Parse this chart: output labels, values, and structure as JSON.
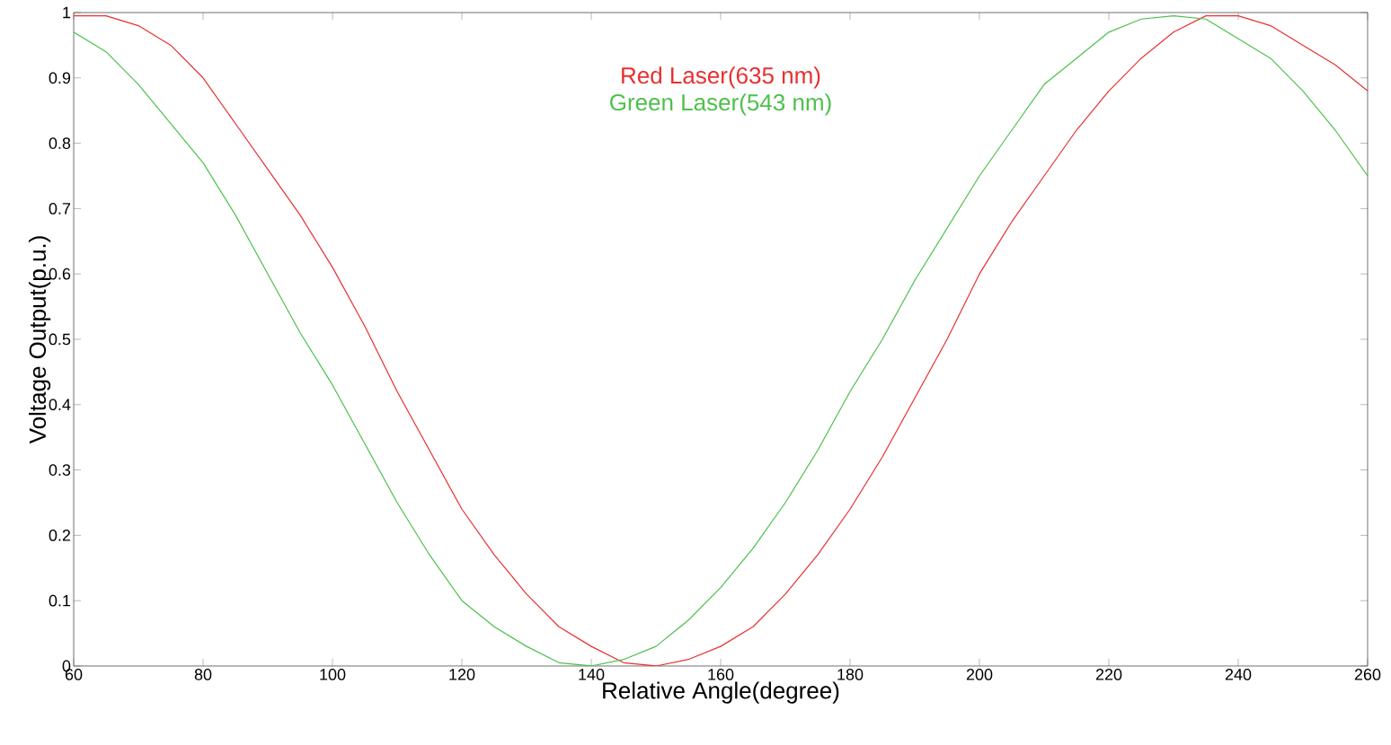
{
  "chart_data": {
    "type": "line",
    "xlabel": "Relative Angle(degree)",
    "ylabel": "Voltage Output(p.u.)",
    "x": [
      60,
      65,
      70,
      75,
      80,
      85,
      90,
      95,
      100,
      105,
      110,
      115,
      120,
      125,
      130,
      135,
      140,
      145,
      150,
      155,
      160,
      165,
      170,
      175,
      180,
      185,
      190,
      195,
      200,
      205,
      210,
      215,
      220,
      225,
      230,
      235,
      240,
      245,
      250,
      255,
      260
    ],
    "series": [
      {
        "name": "Red Laser(635 nm)",
        "color": "#e83030",
        "values": [
          0.995,
          0.995,
          0.98,
          0.95,
          0.9,
          0.83,
          0.76,
          0.69,
          0.61,
          0.52,
          0.42,
          0.33,
          0.24,
          0.17,
          0.11,
          0.06,
          0.03,
          0.005,
          0.0,
          0.01,
          0.03,
          0.06,
          0.11,
          0.17,
          0.24,
          0.32,
          0.41,
          0.5,
          0.6,
          0.68,
          0.75,
          0.82,
          0.88,
          0.93,
          0.97,
          0.995,
          0.995,
          0.98,
          0.95,
          0.92,
          0.88
        ]
      },
      {
        "name": "Green Laser(543 nm)",
        "color": "#4cc04c",
        "values": [
          0.97,
          0.94,
          0.89,
          0.83,
          0.77,
          0.69,
          0.6,
          0.51,
          0.43,
          0.34,
          0.25,
          0.17,
          0.1,
          0.06,
          0.03,
          0.005,
          0.0,
          0.01,
          0.03,
          0.07,
          0.12,
          0.18,
          0.25,
          0.33,
          0.42,
          0.5,
          0.59,
          0.67,
          0.75,
          0.82,
          0.89,
          0.93,
          0.97,
          0.99,
          0.995,
          0.99,
          0.96,
          0.93,
          0.88,
          0.82,
          0.75
        ]
      }
    ],
    "xlim": [
      60,
      260
    ],
    "ylim": [
      0,
      1
    ],
    "xticks": [
      60,
      80,
      100,
      120,
      140,
      160,
      180,
      200,
      220,
      240,
      260
    ],
    "yticks": [
      0,
      0.1,
      0.2,
      0.3,
      0.4,
      0.5,
      0.6,
      0.7,
      0.8,
      0.9,
      1
    ],
    "grid": false,
    "legend": "top",
    "marker": "none",
    "line_style": "solid"
  }
}
